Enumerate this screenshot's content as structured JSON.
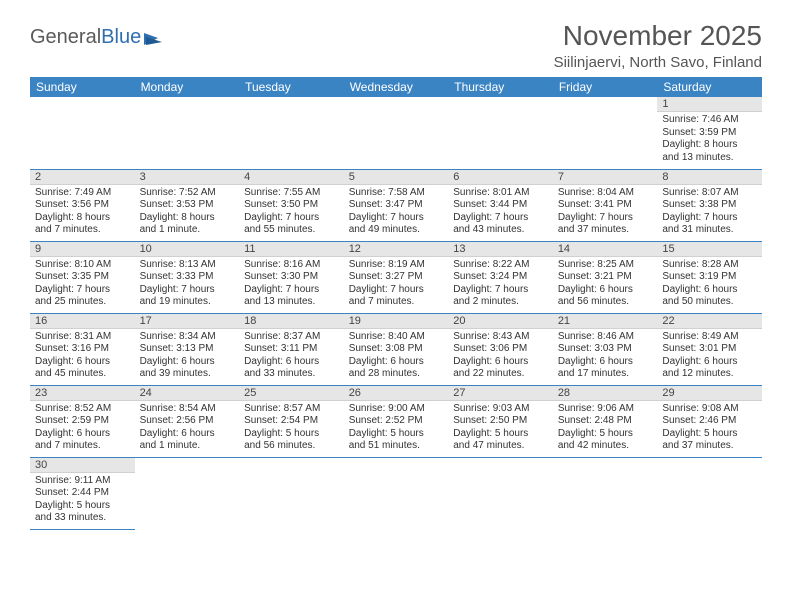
{
  "logo": {
    "part1": "General",
    "part2": "Blue"
  },
  "title": "November 2025",
  "location": "Siilinjaervi, North Savo, Finland",
  "colors": {
    "header_bg": "#3b84c4",
    "header_text": "#ffffff",
    "daynum_bg": "#e6e6e6",
    "border": "#3b84c4",
    "text": "#333333",
    "title_text": "#555555"
  },
  "dayNames": [
    "Sunday",
    "Monday",
    "Tuesday",
    "Wednesday",
    "Thursday",
    "Friday",
    "Saturday"
  ],
  "weeks": [
    [
      null,
      null,
      null,
      null,
      null,
      null,
      {
        "n": "1",
        "sr": "Sunrise: 7:46 AM",
        "ss": "Sunset: 3:59 PM",
        "dl1": "Daylight: 8 hours",
        "dl2": "and 13 minutes."
      }
    ],
    [
      {
        "n": "2",
        "sr": "Sunrise: 7:49 AM",
        "ss": "Sunset: 3:56 PM",
        "dl1": "Daylight: 8 hours",
        "dl2": "and 7 minutes."
      },
      {
        "n": "3",
        "sr": "Sunrise: 7:52 AM",
        "ss": "Sunset: 3:53 PM",
        "dl1": "Daylight: 8 hours",
        "dl2": "and 1 minute."
      },
      {
        "n": "4",
        "sr": "Sunrise: 7:55 AM",
        "ss": "Sunset: 3:50 PM",
        "dl1": "Daylight: 7 hours",
        "dl2": "and 55 minutes."
      },
      {
        "n": "5",
        "sr": "Sunrise: 7:58 AM",
        "ss": "Sunset: 3:47 PM",
        "dl1": "Daylight: 7 hours",
        "dl2": "and 49 minutes."
      },
      {
        "n": "6",
        "sr": "Sunrise: 8:01 AM",
        "ss": "Sunset: 3:44 PM",
        "dl1": "Daylight: 7 hours",
        "dl2": "and 43 minutes."
      },
      {
        "n": "7",
        "sr": "Sunrise: 8:04 AM",
        "ss": "Sunset: 3:41 PM",
        "dl1": "Daylight: 7 hours",
        "dl2": "and 37 minutes."
      },
      {
        "n": "8",
        "sr": "Sunrise: 8:07 AM",
        "ss": "Sunset: 3:38 PM",
        "dl1": "Daylight: 7 hours",
        "dl2": "and 31 minutes."
      }
    ],
    [
      {
        "n": "9",
        "sr": "Sunrise: 8:10 AM",
        "ss": "Sunset: 3:35 PM",
        "dl1": "Daylight: 7 hours",
        "dl2": "and 25 minutes."
      },
      {
        "n": "10",
        "sr": "Sunrise: 8:13 AM",
        "ss": "Sunset: 3:33 PM",
        "dl1": "Daylight: 7 hours",
        "dl2": "and 19 minutes."
      },
      {
        "n": "11",
        "sr": "Sunrise: 8:16 AM",
        "ss": "Sunset: 3:30 PM",
        "dl1": "Daylight: 7 hours",
        "dl2": "and 13 minutes."
      },
      {
        "n": "12",
        "sr": "Sunrise: 8:19 AM",
        "ss": "Sunset: 3:27 PM",
        "dl1": "Daylight: 7 hours",
        "dl2": "and 7 minutes."
      },
      {
        "n": "13",
        "sr": "Sunrise: 8:22 AM",
        "ss": "Sunset: 3:24 PM",
        "dl1": "Daylight: 7 hours",
        "dl2": "and 2 minutes."
      },
      {
        "n": "14",
        "sr": "Sunrise: 8:25 AM",
        "ss": "Sunset: 3:21 PM",
        "dl1": "Daylight: 6 hours",
        "dl2": "and 56 minutes."
      },
      {
        "n": "15",
        "sr": "Sunrise: 8:28 AM",
        "ss": "Sunset: 3:19 PM",
        "dl1": "Daylight: 6 hours",
        "dl2": "and 50 minutes."
      }
    ],
    [
      {
        "n": "16",
        "sr": "Sunrise: 8:31 AM",
        "ss": "Sunset: 3:16 PM",
        "dl1": "Daylight: 6 hours",
        "dl2": "and 45 minutes."
      },
      {
        "n": "17",
        "sr": "Sunrise: 8:34 AM",
        "ss": "Sunset: 3:13 PM",
        "dl1": "Daylight: 6 hours",
        "dl2": "and 39 minutes."
      },
      {
        "n": "18",
        "sr": "Sunrise: 8:37 AM",
        "ss": "Sunset: 3:11 PM",
        "dl1": "Daylight: 6 hours",
        "dl2": "and 33 minutes."
      },
      {
        "n": "19",
        "sr": "Sunrise: 8:40 AM",
        "ss": "Sunset: 3:08 PM",
        "dl1": "Daylight: 6 hours",
        "dl2": "and 28 minutes."
      },
      {
        "n": "20",
        "sr": "Sunrise: 8:43 AM",
        "ss": "Sunset: 3:06 PM",
        "dl1": "Daylight: 6 hours",
        "dl2": "and 22 minutes."
      },
      {
        "n": "21",
        "sr": "Sunrise: 8:46 AM",
        "ss": "Sunset: 3:03 PM",
        "dl1": "Daylight: 6 hours",
        "dl2": "and 17 minutes."
      },
      {
        "n": "22",
        "sr": "Sunrise: 8:49 AM",
        "ss": "Sunset: 3:01 PM",
        "dl1": "Daylight: 6 hours",
        "dl2": "and 12 minutes."
      }
    ],
    [
      {
        "n": "23",
        "sr": "Sunrise: 8:52 AM",
        "ss": "Sunset: 2:59 PM",
        "dl1": "Daylight: 6 hours",
        "dl2": "and 7 minutes."
      },
      {
        "n": "24",
        "sr": "Sunrise: 8:54 AM",
        "ss": "Sunset: 2:56 PM",
        "dl1": "Daylight: 6 hours",
        "dl2": "and 1 minute."
      },
      {
        "n": "25",
        "sr": "Sunrise: 8:57 AM",
        "ss": "Sunset: 2:54 PM",
        "dl1": "Daylight: 5 hours",
        "dl2": "and 56 minutes."
      },
      {
        "n": "26",
        "sr": "Sunrise: 9:00 AM",
        "ss": "Sunset: 2:52 PM",
        "dl1": "Daylight: 5 hours",
        "dl2": "and 51 minutes."
      },
      {
        "n": "27",
        "sr": "Sunrise: 9:03 AM",
        "ss": "Sunset: 2:50 PM",
        "dl1": "Daylight: 5 hours",
        "dl2": "and 47 minutes."
      },
      {
        "n": "28",
        "sr": "Sunrise: 9:06 AM",
        "ss": "Sunset: 2:48 PM",
        "dl1": "Daylight: 5 hours",
        "dl2": "and 42 minutes."
      },
      {
        "n": "29",
        "sr": "Sunrise: 9:08 AM",
        "ss": "Sunset: 2:46 PM",
        "dl1": "Daylight: 5 hours",
        "dl2": "and 37 minutes."
      }
    ],
    [
      {
        "n": "30",
        "sr": "Sunrise: 9:11 AM",
        "ss": "Sunset: 2:44 PM",
        "dl1": "Daylight: 5 hours",
        "dl2": "and 33 minutes."
      },
      null,
      null,
      null,
      null,
      null,
      null
    ]
  ]
}
